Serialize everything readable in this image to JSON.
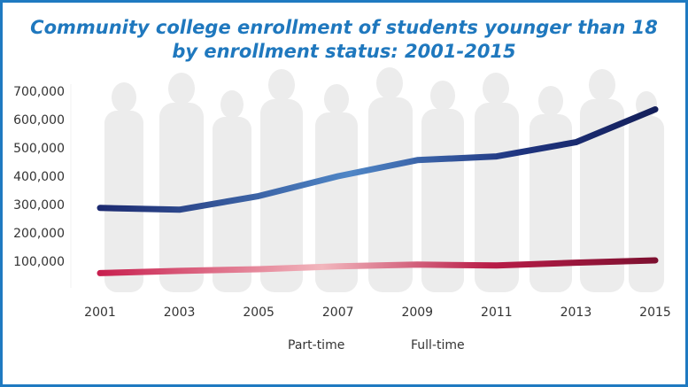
{
  "chart_data": {
    "type": "line",
    "title_line1": "Community college enrollment of students younger than 18",
    "title_line2": "by enrollment status: 2001-2015",
    "categories": [
      "2001",
      "2003",
      "2005",
      "2007",
      "2009",
      "2011",
      "2013",
      "2015"
    ],
    "y_ticks": [
      "700,000",
      "600,000",
      "500,000",
      "400,000",
      "300,000",
      "200,000",
      "100,000"
    ],
    "ylim": [
      0,
      700000
    ],
    "series": [
      {
        "name": "Part-time",
        "values": [
          288000,
          282000,
          330000,
          400000,
          457000,
          470000,
          520000,
          636000
        ],
        "color": "#1b2a6b"
      },
      {
        "name": "Full-time",
        "values": [
          58000,
          66000,
          72000,
          82000,
          88000,
          85000,
          95000,
          103000
        ],
        "color": "#b01c4a"
      }
    ],
    "legend_position": "bottom",
    "grid": false
  }
}
